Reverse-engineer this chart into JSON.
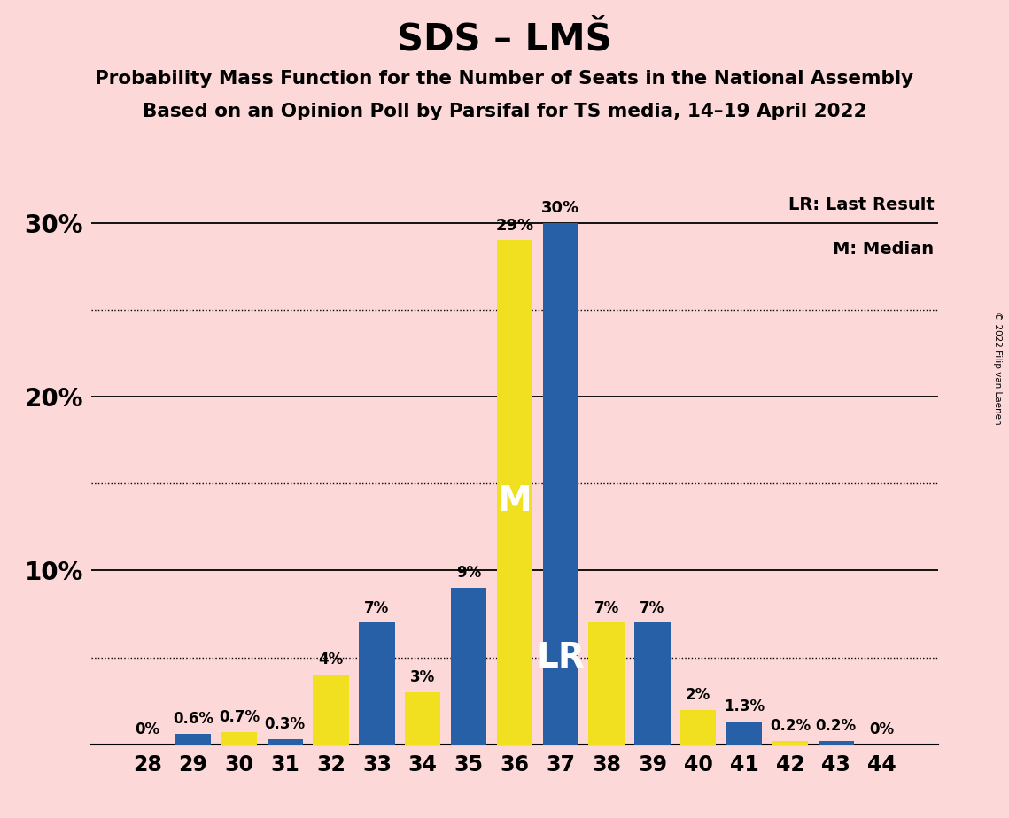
{
  "title": "SDS – LMŠ",
  "subtitle1": "Probability Mass Function for the Number of Seats in the National Assembly",
  "subtitle2": "Based on an Opinion Poll by Parsifal for TS media, 14–19 April 2022",
  "copyright": "© 2022 Filip van Laenen",
  "seats": [
    28,
    29,
    30,
    31,
    32,
    33,
    34,
    35,
    36,
    37,
    38,
    39,
    40,
    41,
    42,
    43,
    44
  ],
  "values": [
    0.0,
    0.6,
    0.7,
    0.3,
    4.0,
    7.0,
    3.0,
    9.0,
    29.0,
    30.0,
    7.0,
    7.0,
    2.0,
    1.3,
    0.2,
    0.2,
    0.0
  ],
  "colors": [
    "#2860a8",
    "#2860a8",
    "#f0e020",
    "#2860a8",
    "#f0e020",
    "#2860a8",
    "#f0e020",
    "#2860a8",
    "#f0e020",
    "#2860a8",
    "#f0e020",
    "#2860a8",
    "#f0e020",
    "#2860a8",
    "#f0e020",
    "#2860a8",
    "#2860a8"
  ],
  "labels": [
    "0%",
    "0.6%",
    "0.7%",
    "0.3%",
    "4%",
    "7%",
    "3%",
    "9%",
    "29%",
    "30%",
    "7%",
    "7%",
    "2%",
    "1.3%",
    "0.2%",
    "0.2%",
    "0%"
  ],
  "median_seat": 36,
  "lr_seat": 37,
  "median_label": "M",
  "lr_label": "LR",
  "lr_legend": "LR: Last Result",
  "m_legend": "M: Median",
  "background_color": "#fcd8d8",
  "bar_color_blue": "#2860a8",
  "bar_color_yellow": "#f0e020",
  "ylim": [
    0,
    32
  ],
  "dotted_lines": [
    5,
    15,
    25
  ],
  "solid_lines": [
    10,
    20,
    30
  ]
}
